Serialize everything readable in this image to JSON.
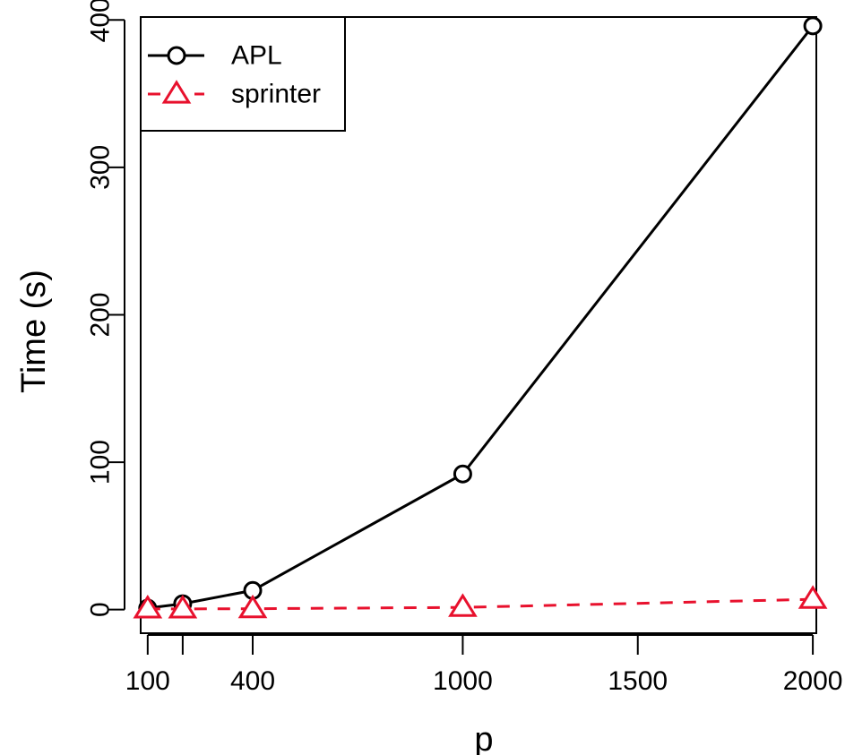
{
  "chart_data": {
    "type": "line",
    "xlabel": "p",
    "ylabel": "Time (s)",
    "xlim": [
      80,
      2010
    ],
    "ylim": [
      -16,
      402
    ],
    "x_ticks": [
      {
        "value": 100,
        "label": "100"
      },
      {
        "value": 200,
        "label": ""
      },
      {
        "value": 400,
        "label": "400"
      },
      {
        "value": 1000,
        "label": "1000"
      },
      {
        "value": 1500,
        "label": "1500"
      },
      {
        "value": 2000,
        "label": "2000"
      }
    ],
    "y_ticks": [
      {
        "value": 0,
        "label": "0"
      },
      {
        "value": 100,
        "label": "100"
      },
      {
        "value": 200,
        "label": "200"
      },
      {
        "value": 300,
        "label": "300"
      },
      {
        "value": 400,
        "label": "400"
      }
    ],
    "legend_position": "top-left",
    "series": [
      {
        "name": "APL",
        "color": "#000000",
        "marker": "circle",
        "line_style": "solid",
        "x": [
          100,
          200,
          400,
          1000,
          2000
        ],
        "y": [
          1,
          4,
          13,
          92,
          396
        ]
      },
      {
        "name": "sprinter",
        "color": "#e8112d",
        "marker": "triangle",
        "line_style": "dashed",
        "x": [
          100,
          200,
          400,
          1000,
          2000
        ],
        "y": [
          0.5,
          0.5,
          0.6,
          1.5,
          7
        ]
      }
    ]
  }
}
